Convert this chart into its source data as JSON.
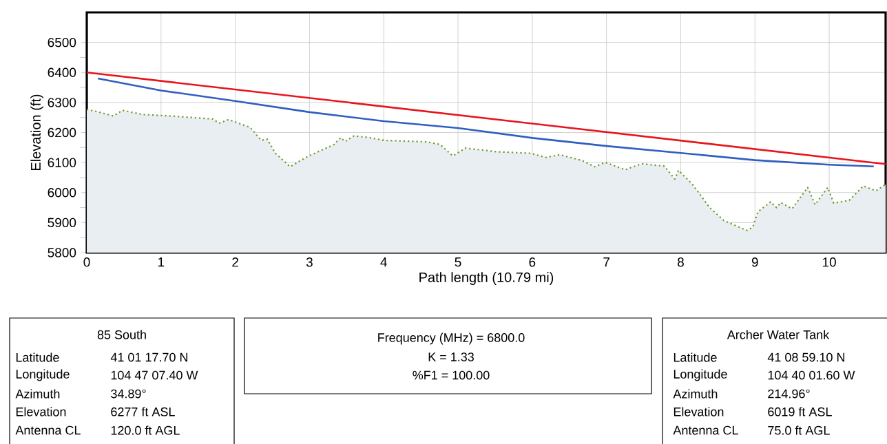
{
  "chart_data": {
    "type": "line",
    "xlabel": "Path length (10.79 mi)",
    "ylabel": "Elevation (ft)",
    "xlim": [
      0,
      10.76
    ],
    "ylim": [
      5800,
      6600
    ],
    "xticks": [
      0,
      1,
      2,
      3,
      4,
      5,
      6,
      7,
      8,
      9,
      10
    ],
    "yticks": [
      5800,
      5900,
      6000,
      6100,
      6200,
      6300,
      6400,
      6500
    ],
    "grid": true,
    "marker": "none",
    "series": [
      {
        "type": "area",
        "color": "#6f9a2c",
        "line_style": "dotted",
        "x": [
          0,
          0.13,
          0.36,
          0.48,
          0.75,
          1.13,
          1.7,
          1.78,
          1.91,
          2.2,
          2.35,
          2.43,
          2.54,
          2.74,
          2.95,
          3.16,
          3.33,
          3.42,
          3.48,
          3.6,
          3.81,
          4.0,
          4.57,
          4.76,
          4.93,
          5.1,
          5.52,
          5.98,
          6.18,
          6.37,
          6.67,
          6.84,
          6.98,
          7.25,
          7.47,
          7.78,
          7.92,
          7.97,
          8.16,
          8.39,
          8.58,
          8.89,
          8.97,
          9.04,
          9.21,
          9.29,
          9.35,
          9.5,
          9.71,
          9.81,
          9.98,
          10.06,
          10.27,
          10.46,
          10.63,
          10.76
        ],
        "values": [
          6277,
          6270,
          6255,
          6274,
          6260,
          6255,
          6245,
          6231,
          6243,
          6217,
          6174,
          6178,
          6131,
          6086,
          6117,
          6141,
          6160,
          6183,
          6170,
          6189,
          6183,
          6174,
          6169,
          6160,
          6122,
          6148,
          6136,
          6131,
          6117,
          6126,
          6107,
          6086,
          6101,
          6076,
          6096,
          6088,
          6045,
          6074,
          6027,
          5950,
          5907,
          5874,
          5884,
          5936,
          5969,
          5950,
          5967,
          5946,
          6017,
          5960,
          6017,
          5965,
          5974,
          6022,
          6006,
          6027
        ]
      },
      {
        "color": "#2f5fbf",
        "line_style": "solid",
        "x": [
          0.15,
          1,
          2,
          3,
          4,
          5,
          6,
          7,
          8,
          9,
          10,
          10.6
        ],
        "values": [
          6380,
          6340,
          6305,
          6268,
          6238,
          6215,
          6182,
          6155,
          6132,
          6108,
          6093,
          6087
        ]
      },
      {
        "color": "#e8141c",
        "line_style": "solid",
        "x": [
          0,
          10.76
        ],
        "values": [
          6400,
          6095
        ]
      }
    ],
    "annotations": [
      "85 South",
      "Latitude",
      "41 01 17.70 N",
      "Longitude",
      "104 47 07.40 W",
      "Azimuth",
      "34.89°",
      "Elevation",
      "6277 ft ASL",
      "Antenna CL",
      "120.0 ft AGL",
      "Frequency (MHz) = 6800.0",
      "K = 1.33",
      "%F1 = 100.00",
      "Archer Water Tank",
      "Latitude",
      "41 08 59.10 N",
      "Longitude",
      "104 40 01.60 W",
      "Azimuth",
      "214.96°",
      "Elevation",
      "6019 ft ASL",
      "Antenna CL",
      "75.0 ft AGL"
    ]
  }
}
